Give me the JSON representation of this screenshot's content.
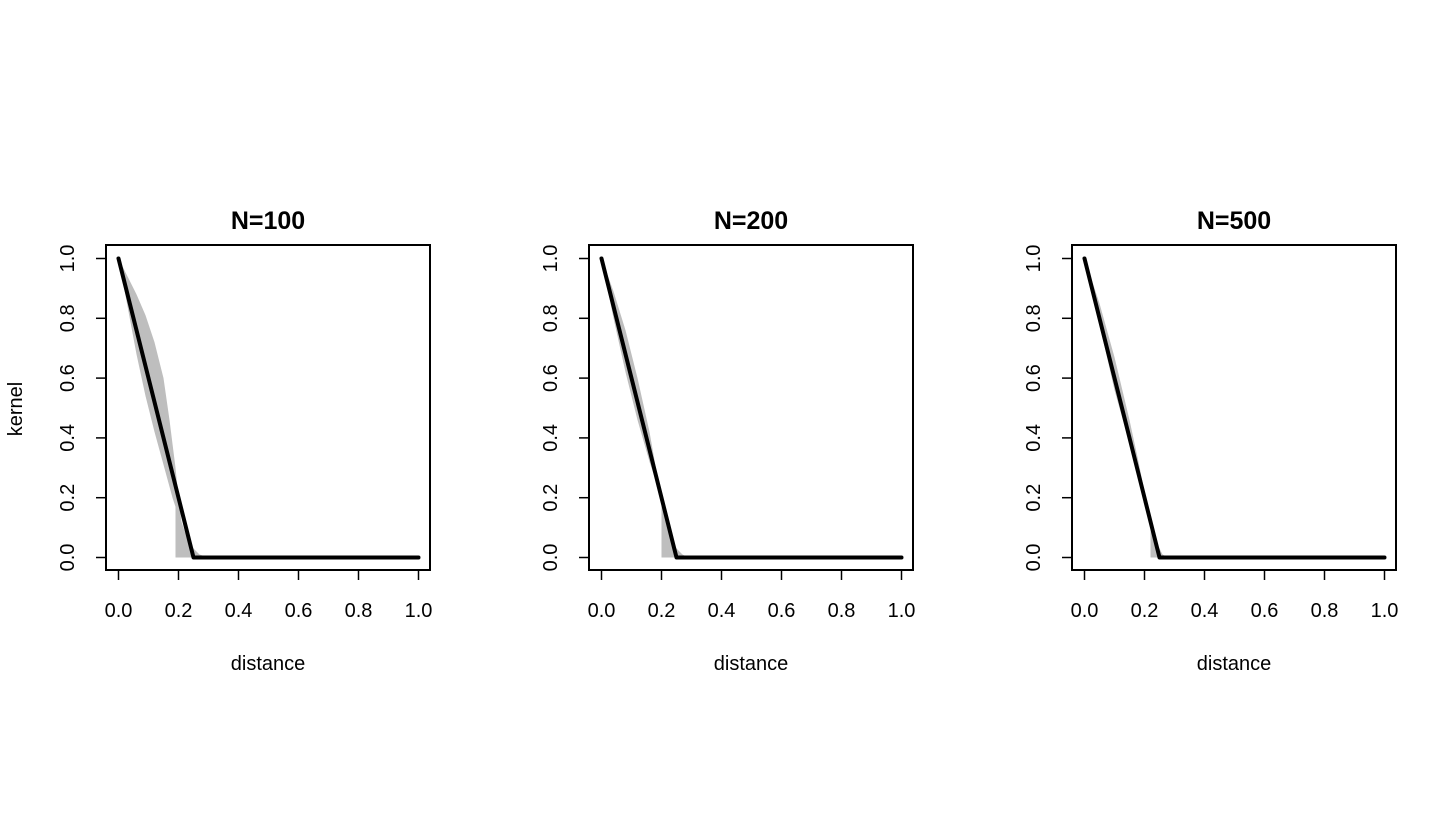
{
  "figure": {
    "shared_ylabel": "kernel",
    "colors": {
      "band": "#bebebe",
      "line": "#000000",
      "frame": "#000000",
      "background": "#ffffff"
    }
  },
  "chart_data": [
    {
      "type": "area",
      "title": "N=100",
      "xlabel": "distance",
      "ylabel": "kernel",
      "xlim": [
        0.0,
        1.0
      ],
      "ylim": [
        0.0,
        1.0
      ],
      "grid": false,
      "x_tick_labels": [
        "0.0",
        "0.2",
        "0.4",
        "0.6",
        "0.8",
        "1.0"
      ],
      "y_tick_labels": [
        "0.0",
        "0.2",
        "0.4",
        "0.6",
        "0.8",
        "1.0"
      ],
      "true_kernel": {
        "x": [
          0.0,
          0.25,
          1.0
        ],
        "y": [
          1.0,
          0.0,
          0.0
        ]
      },
      "confidence_band": {
        "upper": {
          "x": [
            0.0,
            0.03,
            0.06,
            0.09,
            0.12,
            0.15,
            0.17,
            0.19,
            0.2,
            0.21,
            0.23,
            0.25,
            0.27,
            0.3
          ],
          "y": [
            1.0,
            0.94,
            0.88,
            0.81,
            0.72,
            0.6,
            0.46,
            0.3,
            0.2,
            0.12,
            0.06,
            0.03,
            0.01,
            0.0
          ]
        },
        "lower": {
          "x": [
            0.0,
            0.03,
            0.06,
            0.09,
            0.12,
            0.15,
            0.18,
            0.19,
            0.19,
            0.3
          ],
          "y": [
            1.0,
            0.84,
            0.68,
            0.54,
            0.42,
            0.31,
            0.2,
            0.17,
            0.0,
            0.0
          ]
        }
      }
    },
    {
      "type": "area",
      "title": "N=200",
      "xlabel": "distance",
      "ylabel": "",
      "xlim": [
        0.0,
        1.0
      ],
      "ylim": [
        0.0,
        1.0
      ],
      "grid": false,
      "x_tick_labels": [
        "0.0",
        "0.2",
        "0.4",
        "0.6",
        "0.8",
        "1.0"
      ],
      "y_tick_labels": [
        "0.0",
        "0.2",
        "0.4",
        "0.6",
        "0.8",
        "1.0"
      ],
      "true_kernel": {
        "x": [
          0.0,
          0.25,
          1.0
        ],
        "y": [
          1.0,
          0.0,
          0.0
        ]
      },
      "confidence_band": {
        "upper": {
          "x": [
            0.0,
            0.04,
            0.08,
            0.12,
            0.16,
            0.19,
            0.21,
            0.23,
            0.25,
            0.27,
            0.29
          ],
          "y": [
            1.0,
            0.89,
            0.76,
            0.6,
            0.42,
            0.25,
            0.14,
            0.07,
            0.03,
            0.01,
            0.0
          ]
        },
        "lower": {
          "x": [
            0.0,
            0.04,
            0.08,
            0.12,
            0.16,
            0.2,
            0.2,
            0.29
          ],
          "y": [
            1.0,
            0.8,
            0.62,
            0.46,
            0.32,
            0.2,
            0.0,
            0.0
          ]
        }
      }
    },
    {
      "type": "area",
      "title": "N=500",
      "xlabel": "distance",
      "ylabel": "",
      "xlim": [
        0.0,
        1.0
      ],
      "ylim": [
        0.0,
        1.0
      ],
      "grid": false,
      "x_tick_labels": [
        "0.0",
        "0.2",
        "0.4",
        "0.6",
        "0.8",
        "1.0"
      ],
      "y_tick_labels": [
        "0.0",
        "0.2",
        "0.4",
        "0.6",
        "0.8",
        "1.0"
      ],
      "true_kernel": {
        "x": [
          0.0,
          0.25,
          1.0
        ],
        "y": [
          1.0,
          0.0,
          0.0
        ]
      },
      "confidence_band": {
        "upper": {
          "x": [
            0.0,
            0.05,
            0.1,
            0.15,
            0.18,
            0.2,
            0.22,
            0.24,
            0.26,
            0.28
          ],
          "y": [
            1.0,
            0.85,
            0.67,
            0.46,
            0.32,
            0.22,
            0.12,
            0.05,
            0.01,
            0.0
          ]
        },
        "lower": {
          "x": [
            0.0,
            0.05,
            0.1,
            0.15,
            0.2,
            0.22,
            0.22,
            0.28
          ],
          "y": [
            1.0,
            0.78,
            0.56,
            0.38,
            0.19,
            0.1,
            0.0,
            0.0
          ]
        }
      }
    }
  ]
}
